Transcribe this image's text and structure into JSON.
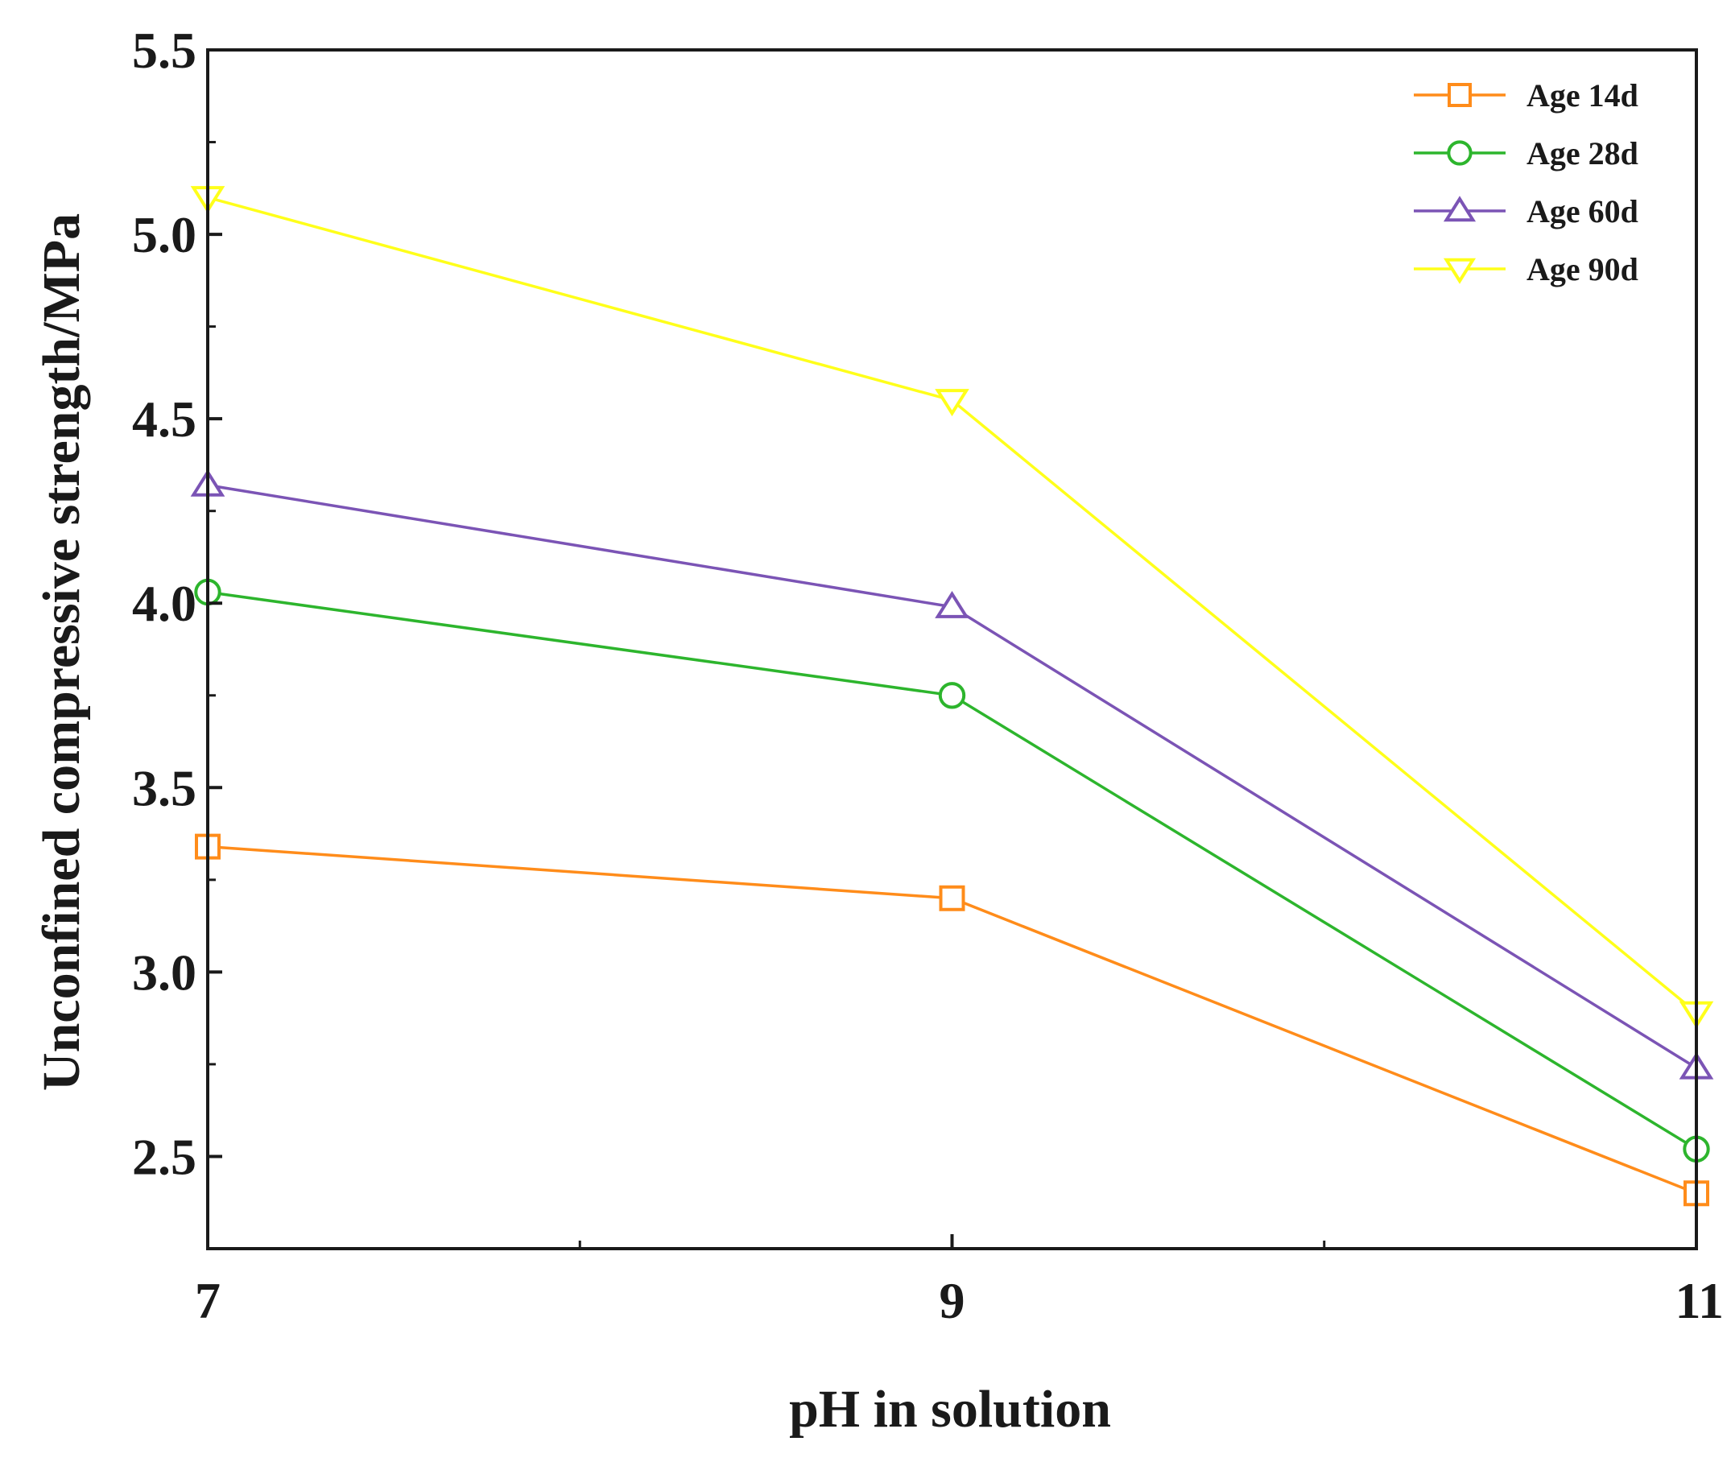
{
  "chart_data": {
    "type": "line",
    "title": "",
    "xlabel": "pH in solution",
    "ylabel": "Unconfined compressive strength/MPa",
    "x": [
      7,
      9,
      11
    ],
    "xlim": [
      7,
      11
    ],
    "ylim": [
      2.25,
      5.5
    ],
    "xticks": [
      7,
      9,
      11
    ],
    "xtick_labels": [
      "7",
      "9",
      "11"
    ],
    "xminor": [
      8,
      10
    ],
    "yticks": [
      2.5,
      3.0,
      3.5,
      4.0,
      4.5,
      5.0,
      5.5
    ],
    "ytick_labels": [
      "2.5",
      "3.0",
      "3.5",
      "4.0",
      "4.5",
      "5.0",
      "5.5"
    ],
    "grid": false,
    "legend_position": "top-right",
    "series": [
      {
        "name": "Age 14d",
        "marker": "square",
        "color": "#ff8c1a",
        "values": [
          3.34,
          3.2,
          2.4
        ]
      },
      {
        "name": "Age 28d",
        "marker": "circle",
        "color": "#2db52d",
        "values": [
          4.03,
          3.75,
          2.52
        ]
      },
      {
        "name": "Age 60d",
        "marker": "triangle-up",
        "color": "#7b54b5",
        "values": [
          4.32,
          3.99,
          2.74
        ]
      },
      {
        "name": "Age 90d",
        "marker": "triangle-down",
        "color": "#ffff1a",
        "values": [
          5.1,
          4.55,
          2.89
        ]
      }
    ]
  }
}
